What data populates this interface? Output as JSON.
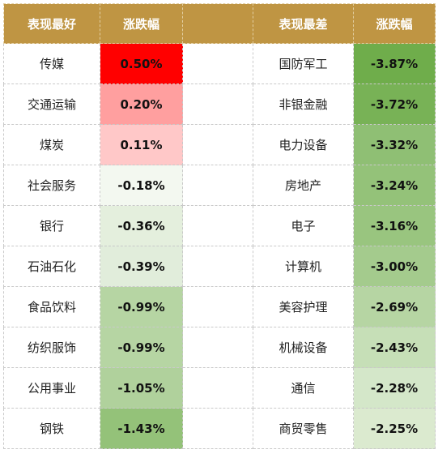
{
  "headers": {
    "best_name": "表现最好",
    "best_change": "涨跌幅",
    "worst_name": "表现最差",
    "worst_change": "涨跌幅"
  },
  "best": [
    {
      "name": "传媒",
      "change": "0.50%",
      "color": "#ff0000"
    },
    {
      "name": "交通运输",
      "change": "0.20%",
      "color": "#ff9f9f"
    },
    {
      "name": "煤炭",
      "change": "0.11%",
      "color": "#ffc8c8"
    },
    {
      "name": "社会服务",
      "change": "-0.18%",
      "color": "#f3f8f0"
    },
    {
      "name": "银行",
      "change": "-0.36%",
      "color": "#e4efdd"
    },
    {
      "name": "石油石化",
      "change": "-0.39%",
      "color": "#e1eddb"
    },
    {
      "name": "食品饮料",
      "change": "-0.99%",
      "color": "#b6d5a3"
    },
    {
      "name": "纺织服饰",
      "change": "-0.99%",
      "color": "#b6d5a3"
    },
    {
      "name": "公用事业",
      "change": "-1.05%",
      "color": "#b0d19c"
    },
    {
      "name": "钢铁",
      "change": "-1.43%",
      "color": "#94c279"
    }
  ],
  "worst": [
    {
      "name": "国防军工",
      "change": "-3.87%",
      "color": "#6fad4b"
    },
    {
      "name": "非银金融",
      "change": "-3.72%",
      "color": "#78b256"
    },
    {
      "name": "电力设备",
      "change": "-3.32%",
      "color": "#8fbf74"
    },
    {
      "name": "房地产",
      "change": "-3.24%",
      "color": "#94c279"
    },
    {
      "name": "电子",
      "change": "-3.16%",
      "color": "#99c57f"
    },
    {
      "name": "计算机",
      "change": "-3.00%",
      "color": "#a4cb8d"
    },
    {
      "name": "美容护理",
      "change": "-2.69%",
      "color": "#b6d5a3"
    },
    {
      "name": "机械设备",
      "change": "-2.43%",
      "color": "#c6dfb7"
    },
    {
      "name": "通信",
      "change": "-2.28%",
      "color": "#d4e7c9"
    },
    {
      "name": "商贸零售",
      "change": "-2.25%",
      "color": "#dbeacf"
    }
  ]
}
